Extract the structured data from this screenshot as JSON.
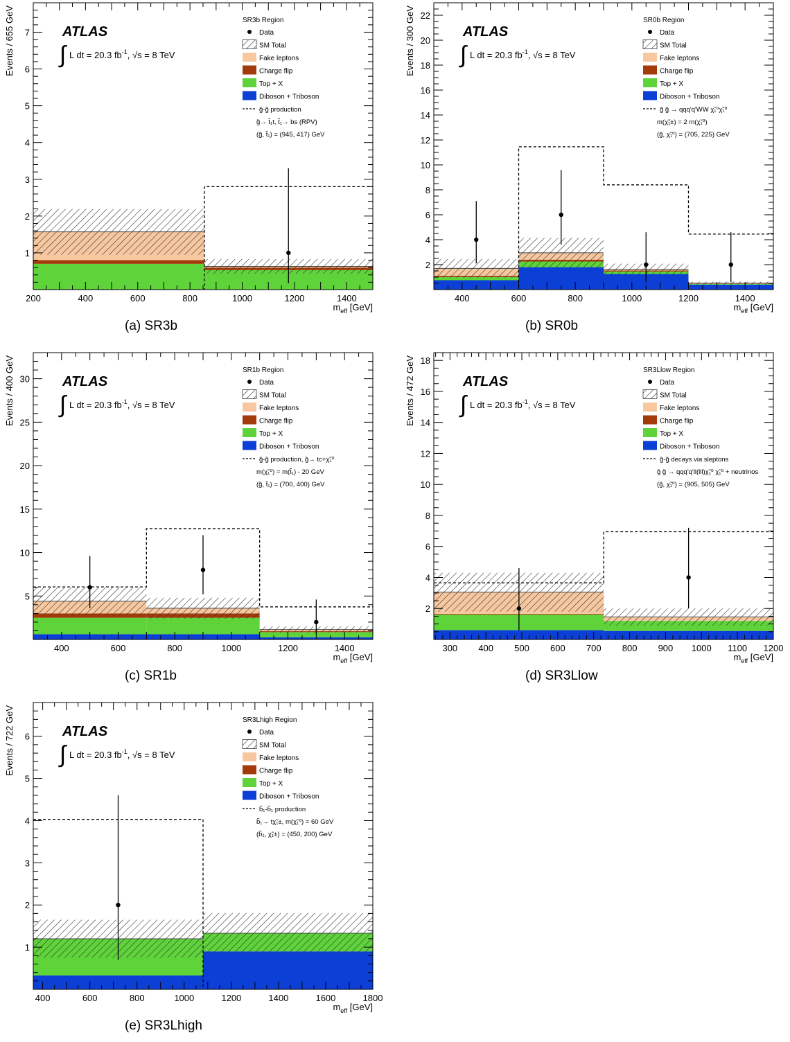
{
  "colors": {
    "fake": "#f7c89f",
    "fake_edge": "#d9a97c",
    "flip": "#a23a0a",
    "top": "#5ed43a",
    "diboson": "#0b3fd6",
    "hatch": "#333333",
    "signal": "#000000",
    "data": "#000000"
  },
  "common": {
    "atlas": "ATLAS",
    "lumi": "L dt = 20.3 fb",
    "lumi_sup": "-1",
    "energy": ", √s = 8 TeV",
    "xlabel_main": "m",
    "xlabel_sub": "eff",
    "xlabel_unit": " [GeV]"
  },
  "legend_common": {
    "data": "Data",
    "sm_total": "SM Total",
    "fake": "Fake leptons",
    "flip": "Charge flip",
    "top": "Top + X",
    "diboson": "Diboson + Triboson"
  },
  "chart_data": [
    {
      "type": "bar",
      "caption": "(a)  SR3b",
      "region": "SR3b Region",
      "ylabel": "Events / 655 GeV",
      "xlim": [
        200,
        1500
      ],
      "ylim": [
        0,
        7.8
      ],
      "xticks": [
        200,
        400,
        600,
        800,
        1000,
        1200,
        1400
      ],
      "yticks": [
        1,
        2,
        3,
        4,
        5,
        6,
        7
      ],
      "xminor": 50,
      "yminor": 0.2,
      "bins": [
        [
          200,
          855
        ],
        [
          855,
          1500
        ]
      ],
      "stack": {
        "diboson": [
          0.0,
          0.0
        ],
        "top": [
          0.7,
          0.53
        ],
        "flip": [
          0.1,
          0.07
        ],
        "fake": [
          0.77,
          0.03
        ]
      },
      "total_err": [
        0.62,
        0.2
      ],
      "signal": [
        0,
        2.8
      ],
      "data_points": [
        {
          "x": 1177,
          "y": 1,
          "lo": 0.17,
          "hi": 3.3
        }
      ],
      "signal_label": [
        "g̃-g̃ production",
        "g̃→ t̃₁t, t̃₁→ bs (RPV)",
        "(g̃, t̃₁) = (945, 417) GeV"
      ]
    },
    {
      "type": "bar",
      "caption": "(b)  SR0b",
      "region": "SR0b Region",
      "ylabel": "Events / 300 GeV",
      "xlim": [
        300,
        1500
      ],
      "ylim": [
        0,
        23
      ],
      "xticks": [
        400,
        600,
        800,
        1000,
        1200,
        1400
      ],
      "yticks": [
        2,
        4,
        6,
        8,
        10,
        12,
        14,
        16,
        18,
        20,
        22
      ],
      "xminor": 50,
      "yminor": 0.5,
      "bins": [
        [
          300,
          600
        ],
        [
          600,
          900
        ],
        [
          900,
          1200
        ],
        [
          1200,
          1500
        ]
      ],
      "stack": {
        "diboson": [
          0.75,
          1.8,
          1.25,
          0.4
        ],
        "top": [
          0.25,
          0.45,
          0.2,
          0.05
        ],
        "flip": [
          0.1,
          0.15,
          0.08,
          0.02
        ],
        "fake": [
          0.6,
          0.55,
          0.1,
          0.05
        ]
      },
      "total_err": [
        0.75,
        1.2,
        0.45,
        0.12
      ],
      "signal": [
        0,
        11.45,
        8.4,
        4.45
      ],
      "data_points": [
        {
          "x": 450,
          "y": 4,
          "lo": 2.1,
          "hi": 7.1
        },
        {
          "x": 750,
          "y": 6,
          "lo": 3.6,
          "hi": 9.6
        },
        {
          "x": 1050,
          "y": 2,
          "lo": 0.6,
          "hi": 4.6
        },
        {
          "x": 1350,
          "y": 2,
          "lo": 0.6,
          "hi": 4.6
        }
      ],
      "signal_label": [
        "g̃ g̃ → qqq'q'WW χ̃₁⁰χ̃₁⁰",
        "m(χ̃₁±) = 2 m(χ̃₁⁰)",
        "(g̃, χ̃₁⁰) = (705, 225) GeV"
      ]
    },
    {
      "type": "bar",
      "caption": "(c)  SR1b",
      "region": "SR1b Region",
      "ylabel": "Events / 400 GeV",
      "xlim": [
        300,
        1500
      ],
      "ylim": [
        0,
        33
      ],
      "xticks": [
        400,
        600,
        800,
        1000,
        1200,
        1400
      ],
      "yticks": [
        5,
        10,
        15,
        20,
        25,
        30
      ],
      "xminor": 50,
      "yminor": 1,
      "bins": [
        [
          300,
          700
        ],
        [
          700,
          1100
        ],
        [
          1100,
          1500
        ]
      ],
      "stack": {
        "diboson": [
          0.6,
          0.6,
          0.25
        ],
        "top": [
          1.9,
          1.9,
          0.6
        ],
        "flip": [
          0.5,
          0.5,
          0.1
        ],
        "fake": [
          1.4,
          0.6,
          0.2
        ]
      },
      "total_err": [
        1.6,
        1.2,
        0.35
      ],
      "signal": [
        6.05,
        12.75,
        3.75
      ],
      "data_points": [
        {
          "x": 500,
          "y": 6,
          "lo": 3.6,
          "hi": 9.6
        },
        {
          "x": 900,
          "y": 8,
          "lo": 5.2,
          "hi": 12
        },
        {
          "x": 1300,
          "y": 2,
          "lo": 0.6,
          "hi": 4.6
        }
      ],
      "signal_label": [
        "g̃-g̃ production, g̃→ tc+χ̃₁⁰",
        "m(χ̃₁⁰) = m(t̃₁) - 20 GeV",
        "(g̃, t̃₁) = (700, 400) GeV"
      ]
    },
    {
      "type": "bar",
      "caption": "(d)  SR3Llow",
      "region": "SR3Llow Region",
      "ylabel": "Events / 472 GeV",
      "xlim": [
        255,
        1200
      ],
      "ylim": [
        0,
        18.5
      ],
      "xticks": [
        300,
        400,
        500,
        600,
        700,
        800,
        900,
        1000,
        1100,
        1200
      ],
      "yticks": [
        2,
        4,
        6,
        8,
        10,
        12,
        14,
        16,
        18
      ],
      "xminor": 20,
      "yminor": 0.5,
      "bins": [
        [
          255,
          728
        ],
        [
          728,
          1200
        ]
      ],
      "stack": {
        "diboson": [
          0.6,
          0.55
        ],
        "top": [
          1.0,
          0.65
        ],
        "flip": [
          0.05,
          0.0
        ],
        "fake": [
          1.4,
          0.25
        ]
      },
      "total_err": [
        1.25,
        0.55
      ],
      "signal": [
        3.65,
        6.95
      ],
      "data_points": [
        {
          "x": 492,
          "y": 2,
          "lo": 0.6,
          "hi": 4.6
        },
        {
          "x": 964,
          "y": 4,
          "lo": 2.0,
          "hi": 7.2
        }
      ],
      "signal_label": [
        "g̃-g̃ decays via sleptons",
        "g̃ g̃ → qqq'q'll(lll)χ̃₁⁰ χ̃₁⁰ + neutrinos",
        "(g̃, χ̃₁⁰) = (905, 505) GeV"
      ]
    },
    {
      "type": "bar",
      "caption": "(e)  SR3Lhigh",
      "region": "SR3Lhigh Region",
      "ylabel": "Events / 722 GeV",
      "xlim": [
        360,
        1800
      ],
      "ylim": [
        0,
        6.8
      ],
      "xticks": [
        400,
        600,
        800,
        1000,
        1200,
        1400,
        1600,
        1800
      ],
      "yticks": [
        1,
        2,
        3,
        4,
        5,
        6
      ],
      "xminor": 50,
      "yminor": 0.2,
      "bins": [
        [
          360,
          1080
        ],
        [
          1080,
          1800
        ]
      ],
      "stack": {
        "diboson": [
          0.33,
          0.9
        ],
        "top": [
          0.87,
          0.43
        ],
        "flip": [
          0.0,
          0.0
        ],
        "fake": [
          0.0,
          0.0
        ]
      },
      "total_err": [
        0.45,
        0.48
      ],
      "signal": [
        4.03,
        0
      ],
      "data_points": [
        {
          "x": 720,
          "y": 2,
          "lo": 0.7,
          "hi": 4.6
        }
      ],
      "signal_label": [
        "b̃₁-b̃₁ production",
        "b̃₁→ tχ̃₁±, m(χ̃₁⁰) = 60 GeV",
        "(b̃₁, χ̃₁±) = (450, 200) GeV"
      ]
    }
  ]
}
